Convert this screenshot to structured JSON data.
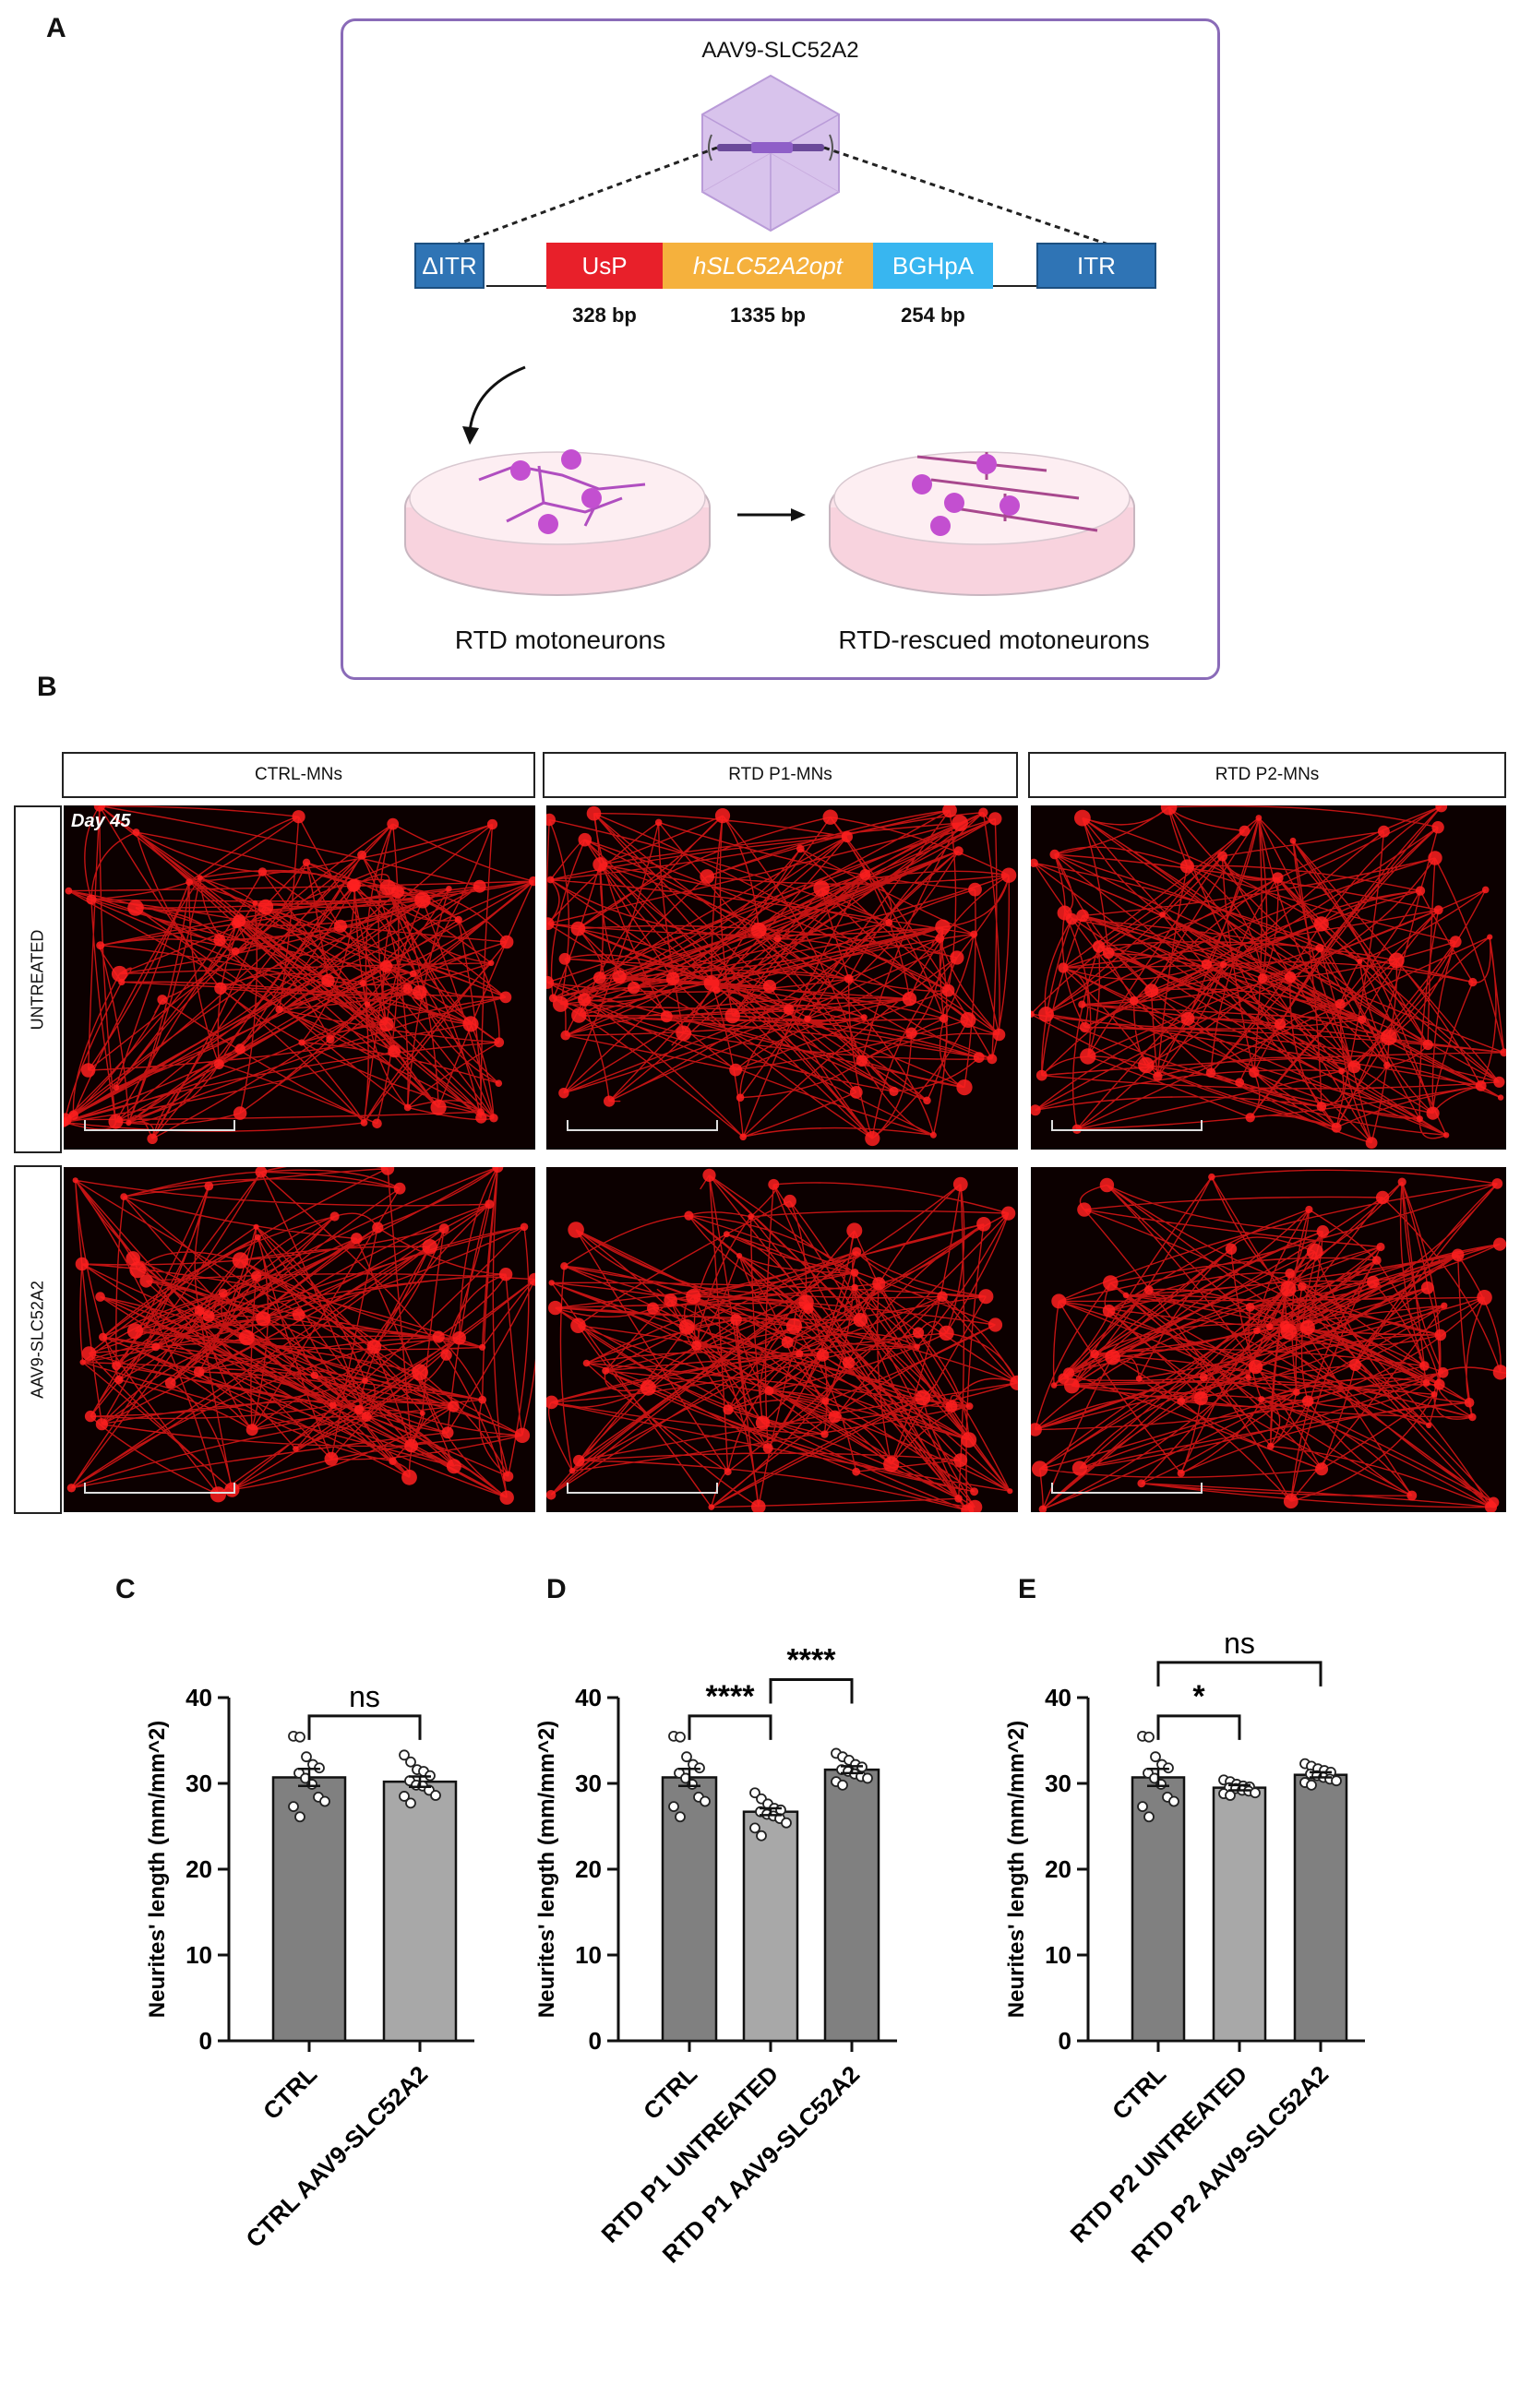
{
  "panels": {
    "A": "A",
    "B": "B",
    "C": "C",
    "D": "D",
    "E": "E"
  },
  "schematic": {
    "vector_title": "AAV9-SLC52A2",
    "cassette": [
      {
        "label": "ΔITR",
        "color": "#2f74b5"
      },
      {
        "label": "UsP",
        "color": "#e8202a"
      },
      {
        "label": "hSLC52A2opt",
        "color": "#f5b13d"
      },
      {
        "label": "BGHpA",
        "color": "#38b6f0"
      },
      {
        "label": "ITR",
        "color": "#2f74b5"
      }
    ],
    "sizes": [
      "328 bp",
      "1335 bp",
      "254 bp"
    ],
    "dish_left": "RTD motoneurons",
    "dish_right": "RTD-rescued motoneurons"
  },
  "micro": {
    "columns": [
      "CTRL-MNs",
      "RTD P1-MNs",
      "RTD P2-MNs"
    ],
    "rows": [
      "UNTREATED",
      "AAV9-SLC52A2"
    ],
    "day": "Day 45"
  },
  "chart_data": [
    {
      "type": "bar",
      "panel": "C",
      "categories": [
        "CTRL",
        "CTRL AAV9-SLC52A2"
      ],
      "values": [
        30.7,
        30.2
      ],
      "errors": [
        1.0,
        0.6
      ],
      "colors": [
        "#808080",
        "#a8a8a8"
      ],
      "points": [
        [
          35.5,
          35.4,
          33.1,
          32.2,
          31.8,
          31.2,
          30.6,
          29.9,
          28.4,
          27.9,
          27.3,
          26.1
        ],
        [
          33.3,
          32.5,
          31.6,
          31.4,
          30.9,
          30.3,
          29.8,
          29.7,
          29.2,
          28.6,
          28.5,
          27.7
        ]
      ],
      "ylabel": "Neurites' length (mm/mm^2)",
      "ylim": [
        0,
        40
      ],
      "yticks": [
        0,
        10,
        20,
        30,
        40
      ],
      "comparisons": [
        {
          "from": 0,
          "to": 1,
          "label": "ns",
          "level": 0
        }
      ]
    },
    {
      "type": "bar",
      "panel": "D",
      "categories": [
        "CTRL",
        "RTD P1 UNTREATED",
        "RTD P1 AAV9-SLC52A2"
      ],
      "values": [
        30.7,
        26.7,
        31.6
      ],
      "errors": [
        1.0,
        0.4,
        0.4
      ],
      "colors": [
        "#808080",
        "#a8a8a8",
        "#808080"
      ],
      "points": [
        [
          35.5,
          35.4,
          33.1,
          32.2,
          31.8,
          31.2,
          30.6,
          29.9,
          28.4,
          27.9,
          27.3,
          26.1
        ],
        [
          28.9,
          28.2,
          27.6,
          27.1,
          26.9,
          26.7,
          26.4,
          26.2,
          25.9,
          25.4,
          24.8,
          23.9
        ],
        [
          33.5,
          33.1,
          32.7,
          32.2,
          31.9,
          31.6,
          31.4,
          31.1,
          30.8,
          30.6,
          30.2,
          29.8
        ]
      ],
      "ylabel": "Neurites' length (mm/mm^2)",
      "ylim": [
        0,
        40
      ],
      "yticks": [
        0,
        10,
        20,
        30,
        40
      ],
      "comparisons": [
        {
          "from": 0,
          "to": 1,
          "label": "****",
          "level": 0
        },
        {
          "from": 1,
          "to": 2,
          "label": "****",
          "level": 1
        }
      ]
    },
    {
      "type": "bar",
      "panel": "E",
      "categories": [
        "CTRL",
        "RTD P2 UNTREATED",
        "RTD P2 AAV9-SLC52A2"
      ],
      "values": [
        30.7,
        29.5,
        31.0
      ],
      "errors": [
        1.0,
        0.3,
        0.3
      ],
      "colors": [
        "#808080",
        "#a8a8a8",
        "#808080"
      ],
      "points": [
        [
          35.5,
          35.4,
          33.1,
          32.2,
          31.8,
          31.2,
          30.6,
          29.9,
          28.4,
          27.9,
          27.3,
          26.1
        ],
        [
          30.4,
          30.2,
          29.9,
          29.7,
          29.6,
          29.5,
          29.4,
          29.2,
          29.1,
          28.9,
          28.8,
          28.6
        ],
        [
          32.3,
          32.0,
          31.7,
          31.5,
          31.3,
          31.1,
          30.9,
          30.7,
          30.5,
          30.3,
          30.1,
          29.8
        ]
      ],
      "ylabel": "Neurites' length (mm/mm^2)",
      "ylim": [
        0,
        40
      ],
      "yticks": [
        0,
        10,
        20,
        30,
        40
      ],
      "comparisons": [
        {
          "from": 0,
          "to": 1,
          "label": "*",
          "level": 0
        },
        {
          "from": 0,
          "to": 2,
          "label": "ns",
          "level": 1
        }
      ]
    }
  ]
}
